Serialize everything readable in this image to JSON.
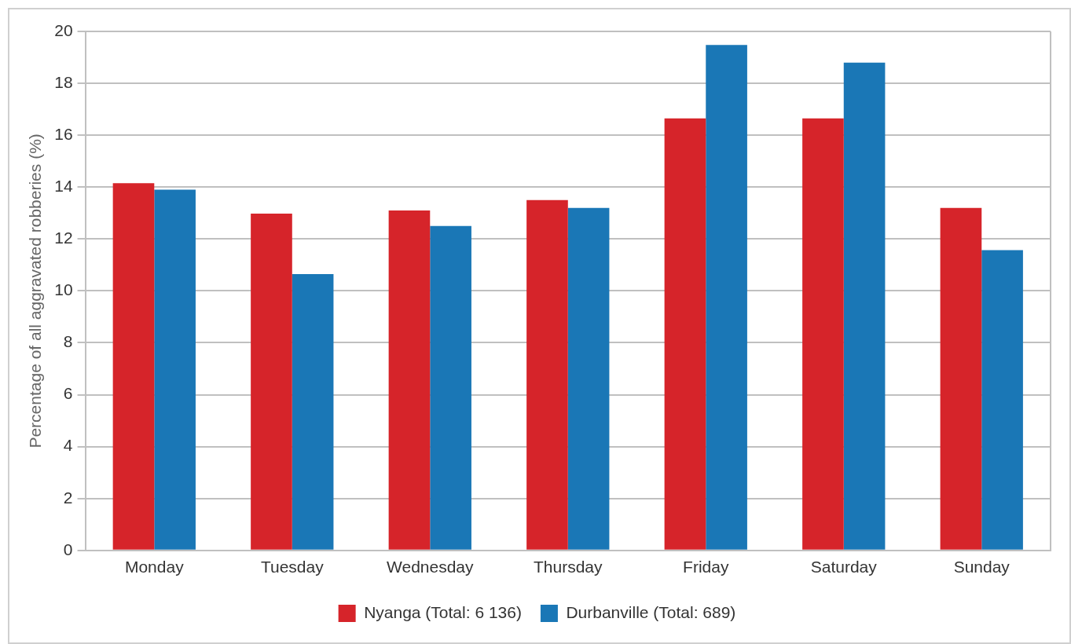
{
  "chart_data": {
    "type": "bar",
    "ylabel": "Percentage of all aggravated robberies (%)",
    "categories": [
      "Monday",
      "Tuesday",
      "Wednesday",
      "Thursday",
      "Friday",
      "Saturday",
      "Sunday"
    ],
    "series": [
      {
        "name": "Nyanga (Total: 6 136)",
        "color": "#d6242a",
        "values": [
          14.15,
          12.98,
          13.1,
          13.5,
          16.65,
          16.65,
          13.2
        ]
      },
      {
        "name": "Durbanville (Total: 689)",
        "color": "#1a77b6",
        "values": [
          13.9,
          10.65,
          12.5,
          13.2,
          19.48,
          18.8,
          11.57
        ]
      }
    ],
    "ylim": [
      0,
      20
    ],
    "yticks": [
      0,
      2,
      4,
      6,
      8,
      10,
      12,
      14,
      16,
      18,
      20
    ],
    "grid": "y",
    "legend": "bottom"
  }
}
